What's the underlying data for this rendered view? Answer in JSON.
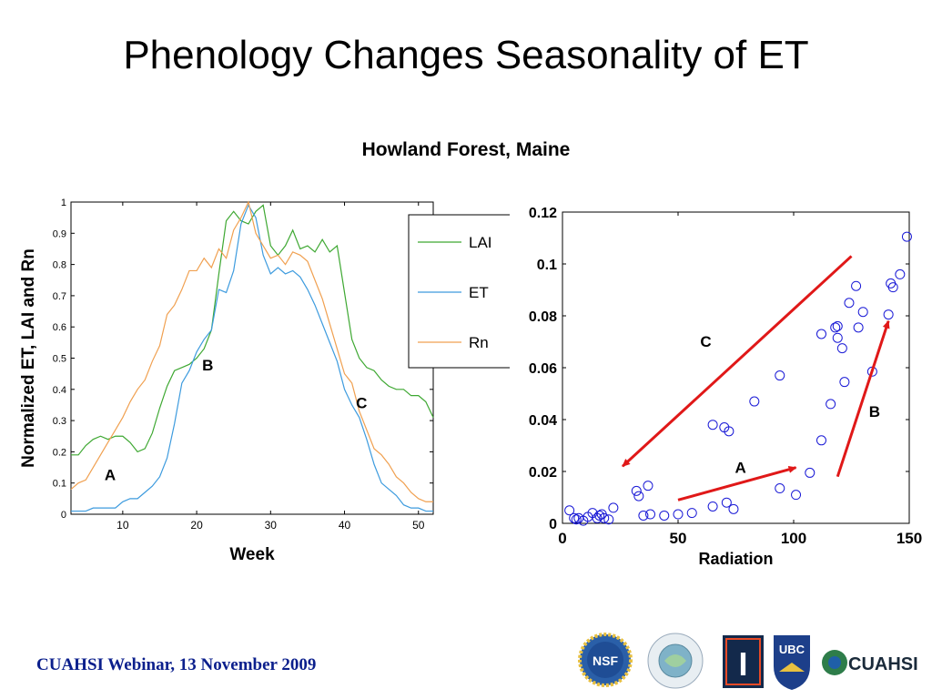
{
  "slide": {
    "title": "Phenology Changes Seasonality of ET",
    "subtitle": "Howland Forest, Maine",
    "footer": "CUAHSI Webinar, 13 November 2009",
    "logos": [
      {
        "name": "nsf-logo",
        "text": "NSF"
      },
      {
        "name": "predictability-logo",
        "text": ""
      },
      {
        "name": "illinois-logo",
        "text": "I"
      },
      {
        "name": "ubc-logo",
        "text": "UBC"
      },
      {
        "name": "cuahsi-logo",
        "text": "CUAHSI"
      }
    ]
  },
  "colors": {
    "lai": "#3ea832",
    "et": "#3d9bde",
    "rn": "#f0a050",
    "scatter": "#1a1ad6",
    "arrow": "#e01818",
    "footer": "#0b1f8c"
  },
  "chart_data": [
    {
      "type": "line",
      "title": "",
      "xlabel": "Week",
      "ylabel": "Normalized ET, LAI and Rn",
      "xlim": [
        3,
        52
      ],
      "ylim": [
        0,
        1
      ],
      "xticks": [
        "10",
        "20",
        "30",
        "40",
        "50"
      ],
      "yticks": [
        "0",
        "0.1",
        "0.2",
        "0.3",
        "0.4",
        "0.5",
        "0.6",
        "0.7",
        "0.8",
        "0.9",
        "1"
      ],
      "legend": {
        "position": "top-right",
        "entries": [
          "LAI",
          "ET",
          "Rn"
        ]
      },
      "x": [
        3,
        4,
        5,
        6,
        7,
        8,
        9,
        10,
        11,
        12,
        13,
        14,
        15,
        16,
        17,
        18,
        19,
        20,
        21,
        22,
        23,
        24,
        25,
        26,
        27,
        28,
        29,
        30,
        31,
        32,
        33,
        34,
        35,
        36,
        37,
        38,
        39,
        40,
        41,
        42,
        43,
        44,
        45,
        46,
        47,
        48,
        49,
        50,
        51,
        52
      ],
      "series": [
        {
          "name": "LAI",
          "color": "lai",
          "values": [
            0.19,
            0.19,
            0.22,
            0.24,
            0.25,
            0.24,
            0.25,
            0.25,
            0.23,
            0.2,
            0.21,
            0.26,
            0.34,
            0.41,
            0.46,
            0.47,
            0.48,
            0.5,
            0.53,
            0.59,
            0.77,
            0.94,
            0.97,
            0.94,
            0.93,
            0.97,
            0.99,
            0.86,
            0.83,
            0.86,
            0.91,
            0.85,
            0.86,
            0.84,
            0.88,
            0.84,
            0.86,
            0.71,
            0.56,
            0.5,
            0.47,
            0.46,
            0.43,
            0.41,
            0.4,
            0.4,
            0.38,
            0.38,
            0.36,
            0.31
          ]
        },
        {
          "name": "ET",
          "color": "et",
          "values": [
            0.01,
            0.01,
            0.01,
            0.02,
            0.02,
            0.02,
            0.02,
            0.04,
            0.05,
            0.05,
            0.07,
            0.09,
            0.12,
            0.18,
            0.29,
            0.42,
            0.46,
            0.52,
            0.56,
            0.59,
            0.72,
            0.71,
            0.78,
            0.93,
            0.99,
            0.95,
            0.83,
            0.77,
            0.79,
            0.77,
            0.78,
            0.76,
            0.72,
            0.67,
            0.61,
            0.55,
            0.49,
            0.4,
            0.35,
            0.31,
            0.24,
            0.16,
            0.1,
            0.08,
            0.06,
            0.03,
            0.02,
            0.02,
            0.01,
            0.01
          ]
        },
        {
          "name": "Rn",
          "color": "rn",
          "values": [
            0.08,
            0.1,
            0.11,
            0.15,
            0.19,
            0.23,
            0.27,
            0.31,
            0.36,
            0.4,
            0.43,
            0.49,
            0.54,
            0.64,
            0.67,
            0.72,
            0.78,
            0.78,
            0.82,
            0.79,
            0.85,
            0.82,
            0.91,
            0.95,
            1.0,
            0.9,
            0.86,
            0.82,
            0.83,
            0.8,
            0.84,
            0.83,
            0.81,
            0.75,
            0.69,
            0.61,
            0.53,
            0.45,
            0.42,
            0.33,
            0.27,
            0.21,
            0.19,
            0.16,
            0.12,
            0.1,
            0.07,
            0.05,
            0.04,
            0.04
          ]
        }
      ],
      "annotations": [
        {
          "text": "A",
          "x": 8.3,
          "y": 0.11
        },
        {
          "text": "B",
          "x": 21.5,
          "y": 0.46
        },
        {
          "text": "C",
          "x": 42.3,
          "y": 0.34
        }
      ]
    },
    {
      "type": "scatter",
      "title": "",
      "xlabel": "Radiation",
      "ylabel": "",
      "xlim": [
        0,
        150
      ],
      "ylim": [
        0,
        0.12
      ],
      "xticks": [
        "0",
        "50",
        "100",
        "150"
      ],
      "yticks": [
        "0",
        "0.02",
        "0.04",
        "0.06",
        "0.08",
        "0.1",
        "0.12"
      ],
      "points": [
        [
          3,
          0.005
        ],
        [
          5,
          0.002
        ],
        [
          6,
          0.0015
        ],
        [
          7,
          0.002
        ],
        [
          9,
          0.001
        ],
        [
          11,
          0.0025
        ],
        [
          13,
          0.004
        ],
        [
          15,
          0.002
        ],
        [
          16,
          0.003
        ],
        [
          17,
          0.0035
        ],
        [
          18,
          0.002
        ],
        [
          20,
          0.0015
        ],
        [
          22,
          0.006
        ],
        [
          32,
          0.0125
        ],
        [
          33,
          0.0105
        ],
        [
          35,
          0.003
        ],
        [
          37,
          0.0145
        ],
        [
          38,
          0.0035
        ],
        [
          44,
          0.003
        ],
        [
          50,
          0.0035
        ],
        [
          56,
          0.004
        ],
        [
          65,
          0.0065
        ],
        [
          65,
          0.038
        ],
        [
          70,
          0.037
        ],
        [
          71,
          0.008
        ],
        [
          72,
          0.0355
        ],
        [
          74,
          0.0055
        ],
        [
          83,
          0.047
        ],
        [
          94,
          0.057
        ],
        [
          94,
          0.0135
        ],
        [
          101,
          0.011
        ],
        [
          107,
          0.0195
        ],
        [
          112,
          0.032
        ],
        [
          112,
          0.073
        ],
        [
          116,
          0.046
        ],
        [
          118,
          0.0755
        ],
        [
          119,
          0.0715
        ],
        [
          119,
          0.076
        ],
        [
          121,
          0.0675
        ],
        [
          122,
          0.0545
        ],
        [
          124,
          0.085
        ],
        [
          127,
          0.0915
        ],
        [
          128,
          0.0755
        ],
        [
          130,
          0.0815
        ],
        [
          134,
          0.0585
        ],
        [
          141,
          0.0805
        ],
        [
          142,
          0.0925
        ],
        [
          143,
          0.091
        ],
        [
          146,
          0.096
        ],
        [
          149,
          0.1105
        ]
      ],
      "arrows": [
        {
          "from": [
            125,
            0.103
          ],
          "to": [
            26,
            0.022
          ]
        },
        {
          "from": [
            50,
            0.009
          ],
          "to": [
            101,
            0.0215
          ]
        },
        {
          "from": [
            119,
            0.018
          ],
          "to": [
            141,
            0.078
          ]
        }
      ],
      "annotations": [
        {
          "text": "C",
          "x": 62,
          "y": 0.068
        },
        {
          "text": "A",
          "x": 77,
          "y": 0.0195
        },
        {
          "text": "B",
          "x": 135,
          "y": 0.041
        }
      ]
    }
  ]
}
